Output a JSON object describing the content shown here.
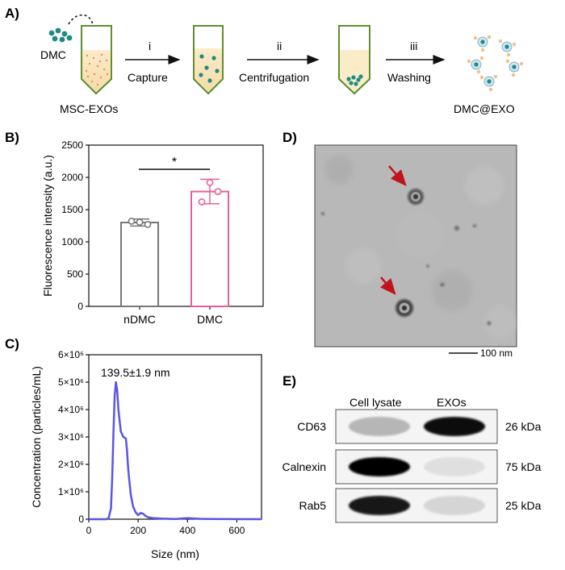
{
  "panels": {
    "A": {
      "letter": "A)",
      "dmc_label": "DMC",
      "tube1_label": "MSC-EXOs",
      "final_label": "DMC@EXO",
      "steps": [
        {
          "numeral": "i",
          "name": "Capture"
        },
        {
          "numeral": "ii",
          "name": "Centrifugation"
        },
        {
          "numeral": "iii",
          "name": "Washing"
        }
      ]
    },
    "B": {
      "letter": "B)",
      "significance": "*"
    },
    "C": {
      "letter": "C)",
      "annotation": "139.5±1.9 nm"
    },
    "D": {
      "letter": "D)",
      "scale_bar": "100 nm"
    },
    "E": {
      "letter": "E)",
      "columns": [
        "Cell lysate",
        "EXOs"
      ],
      "rows": [
        {
          "protein": "CD63",
          "mw": "26 kDa",
          "lysate_intensity": 0.25,
          "exo_intensity": 0.95
        },
        {
          "protein": "Calnexin",
          "mw": "75 kDa",
          "lysate_intensity": 1.0,
          "exo_intensity": 0.08
        },
        {
          "protein": "Rab5",
          "mw": "25 kDa",
          "lysate_intensity": 0.9,
          "exo_intensity": 0.12
        }
      ]
    }
  },
  "chart_data": [
    {
      "type": "bar",
      "categories": [
        "nDMC",
        "DMC"
      ],
      "values": [
        1300,
        1780
      ],
      "errors": [
        55,
        190
      ],
      "points": [
        [
          1320,
          1270,
          1305
        ],
        [
          1620,
          1780,
          1920
        ]
      ],
      "colors": [
        "#777777",
        "#e8609a"
      ],
      "ylabel": "Fluorescence intensity (a.u.)",
      "ylim": [
        0,
        2500
      ],
      "yticks": [
        "0",
        "500",
        "1000",
        "1500",
        "2000",
        "2500"
      ]
    },
    {
      "type": "line",
      "xlabel": "Size (nm)",
      "ylabel": "Concentration (particles/mL)",
      "xlim": [
        0,
        700
      ],
      "ylim": [
        0,
        6000000
      ],
      "xticks": [
        "0",
        "200",
        "400",
        "600"
      ],
      "yticks": [
        "0",
        "1×10⁶",
        "2×10⁶",
        "3×10⁶",
        "4×10⁶",
        "5×10⁶",
        "6×10⁶"
      ],
      "color": "#5a55e6",
      "x": [
        0,
        70,
        80,
        90,
        95,
        100,
        105,
        110,
        115,
        120,
        130,
        140,
        150,
        155,
        160,
        170,
        180,
        190,
        200,
        210,
        220,
        230,
        240,
        260,
        300,
        350,
        400,
        450,
        500,
        700
      ],
      "y": [
        0,
        0,
        30000,
        400000,
        1500000,
        3200000,
        4500000,
        5000000,
        4700000,
        4000000,
        3200000,
        3000000,
        2950000,
        2500000,
        1800000,
        900000,
        450000,
        250000,
        150000,
        230000,
        200000,
        120000,
        70000,
        40000,
        20000,
        10000,
        40000,
        15000,
        5000,
        0
      ]
    }
  ]
}
